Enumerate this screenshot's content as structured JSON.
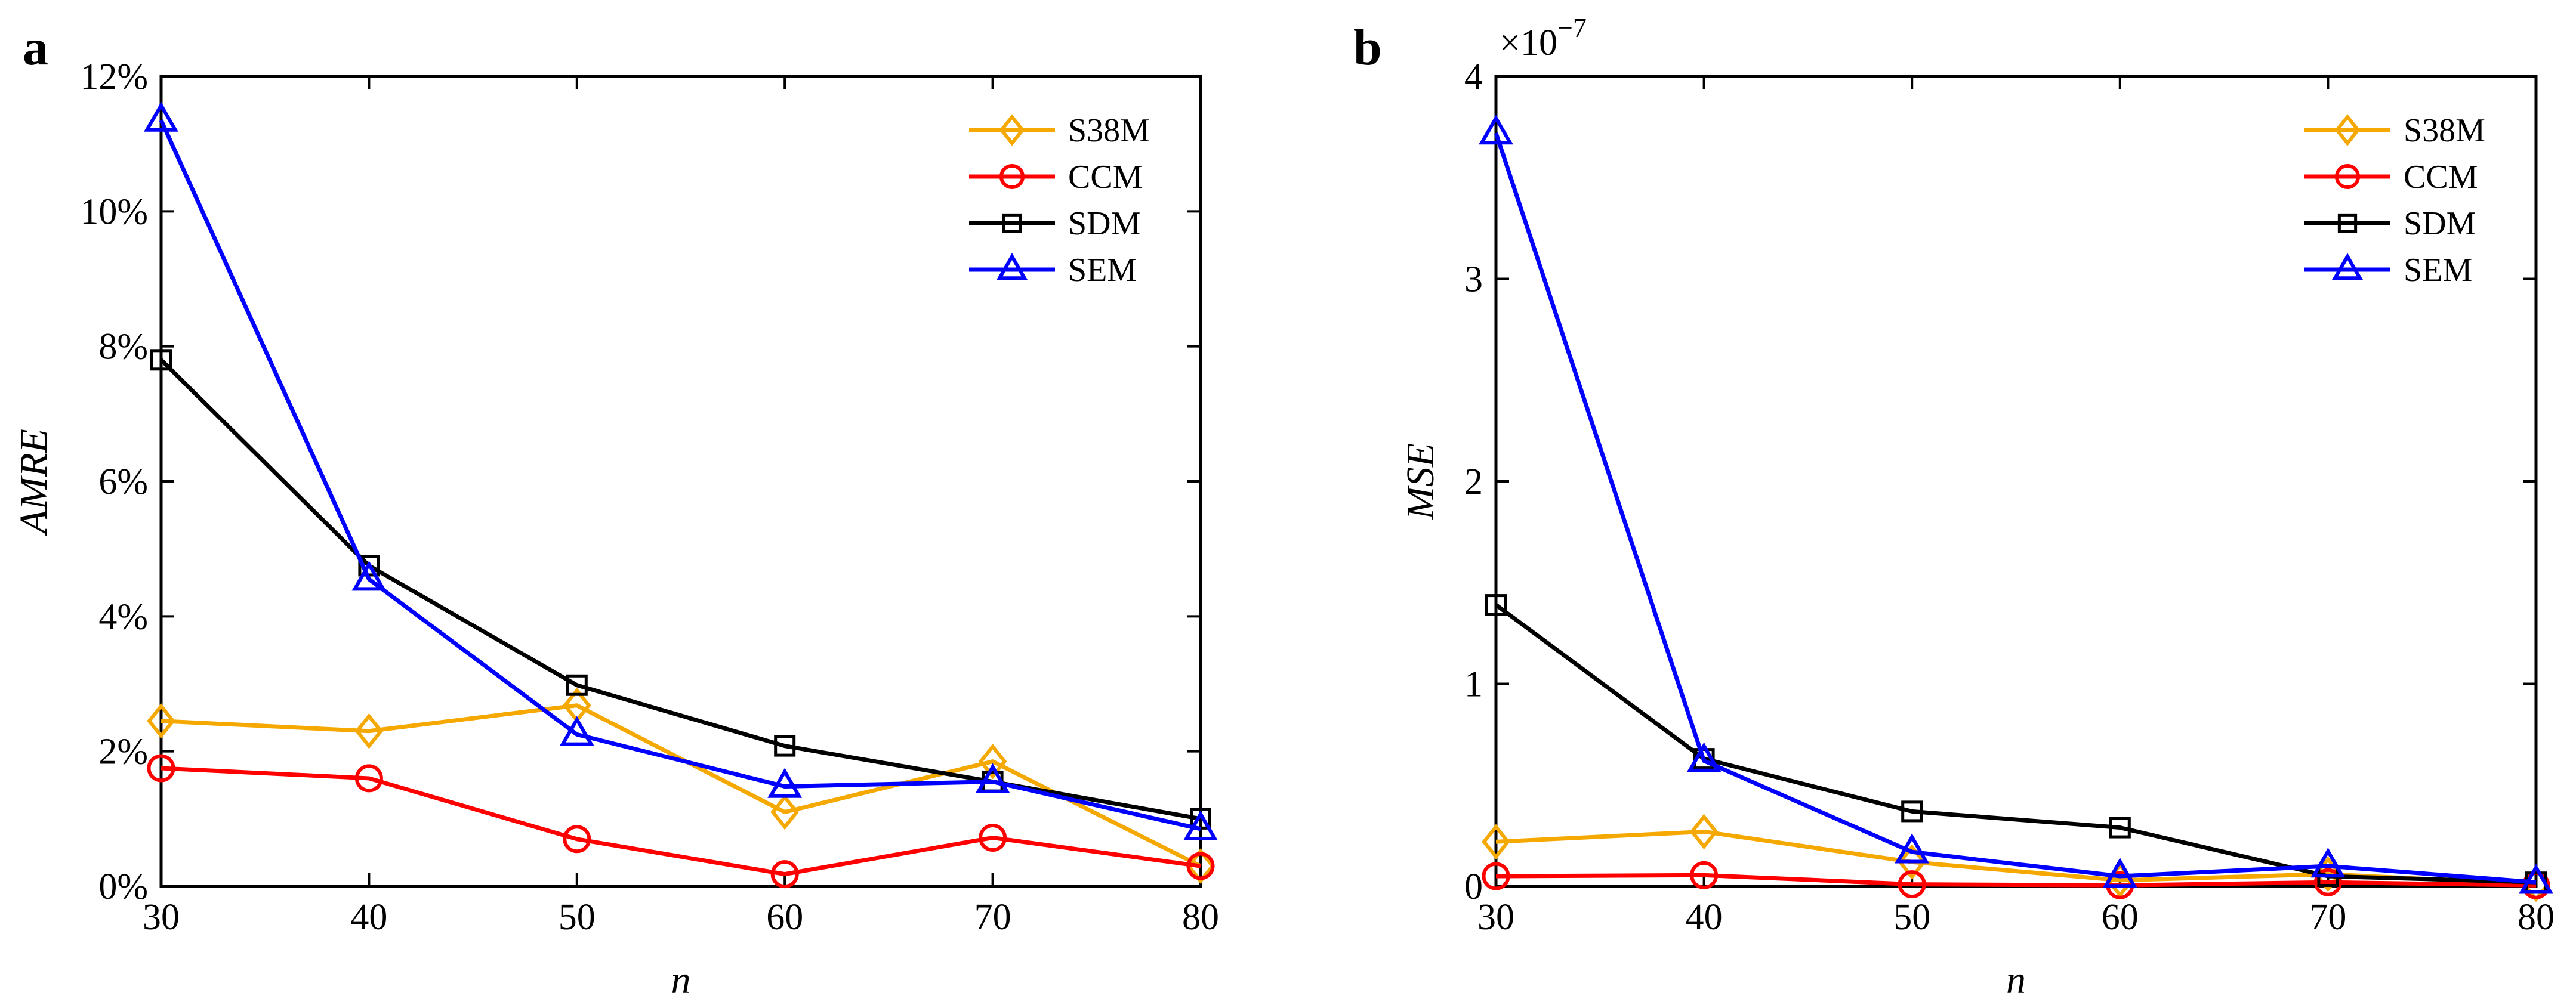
{
  "chart_data": [
    {
      "type": "line",
      "panel_label": "a",
      "xlabel": "n",
      "ylabel": "AMRE",
      "x": [
        30,
        40,
        50,
        60,
        70,
        80
      ],
      "xlim": [
        30,
        80
      ],
      "ylim": [
        0,
        12
      ],
      "xticks": [
        "30",
        "40",
        "50",
        "60",
        "70",
        "80"
      ],
      "yticks": [
        "0%",
        "2%",
        "4%",
        "6%",
        "8%",
        "10%",
        "12%"
      ],
      "y_unit": "percent",
      "grid": false,
      "legend_position": "top-right",
      "series": [
        {
          "name": "S38M",
          "color": "#F5A800",
          "marker": "diamond",
          "values": [
            2.45,
            2.3,
            2.68,
            1.1,
            1.85,
            0.3
          ]
        },
        {
          "name": "CCM",
          "color": "#FF0000",
          "marker": "circle",
          "values": [
            1.75,
            1.6,
            0.7,
            0.18,
            0.72,
            0.3
          ]
        },
        {
          "name": "SDM",
          "color": "#000000",
          "marker": "square",
          "values": [
            7.8,
            4.75,
            2.98,
            2.08,
            1.55,
            1.0
          ]
        },
        {
          "name": "SEM",
          "color": "#0000FF",
          "marker": "triangle",
          "values": [
            11.35,
            4.55,
            2.25,
            1.48,
            1.55,
            0.85
          ]
        }
      ]
    },
    {
      "type": "line",
      "panel_label": "b",
      "xlabel": "n",
      "ylabel": "MSE",
      "y_exponent": "×10",
      "y_exponent_power": "−7",
      "x": [
        30,
        40,
        50,
        60,
        70,
        80
      ],
      "xlim": [
        30,
        80
      ],
      "ylim": [
        0,
        4
      ],
      "xticks": [
        "30",
        "40",
        "50",
        "60",
        "70",
        "80"
      ],
      "yticks": [
        "0",
        "1",
        "2",
        "3",
        "4"
      ],
      "grid": false,
      "legend_position": "top-right",
      "series": [
        {
          "name": "S38M",
          "color": "#F5A800",
          "marker": "diamond",
          "values": [
            0.22,
            0.27,
            0.12,
            0.03,
            0.06,
            0.01
          ]
        },
        {
          "name": "CCM",
          "color": "#FF0000",
          "marker": "circle",
          "values": [
            0.05,
            0.055,
            0.01,
            0.005,
            0.02,
            0.005
          ]
        },
        {
          "name": "SDM",
          "color": "#000000",
          "marker": "square",
          "values": [
            1.39,
            0.63,
            0.37,
            0.29,
            0.05,
            0.02
          ]
        },
        {
          "name": "SEM",
          "color": "#0000FF",
          "marker": "triangle",
          "values": [
            3.72,
            0.62,
            0.17,
            0.05,
            0.1,
            0.02
          ]
        }
      ]
    }
  ]
}
